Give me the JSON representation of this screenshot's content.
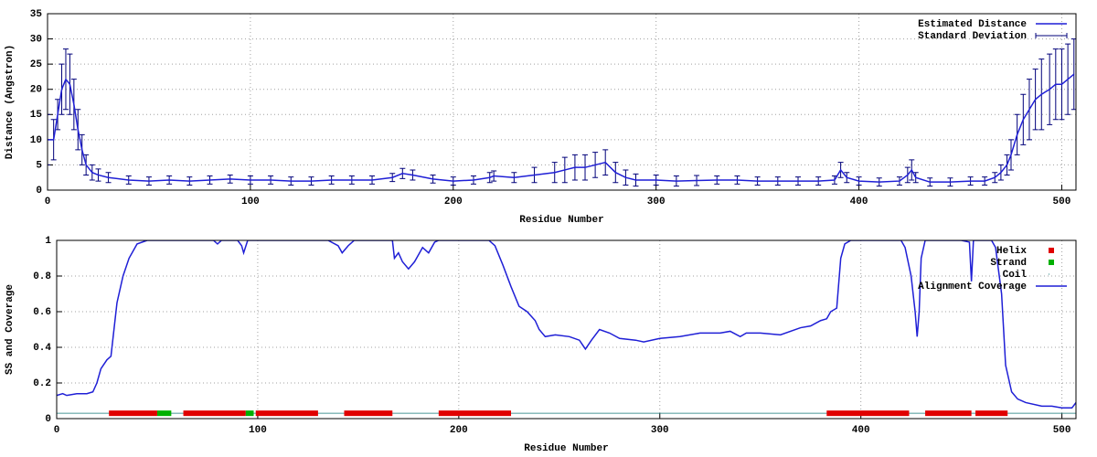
{
  "chart_data": [
    {
      "type": "errorbar",
      "xlabel": "Residue Number",
      "ylabel": "Distance (Angstron)",
      "xlim": [
        0,
        507
      ],
      "ylim": [
        0,
        35
      ],
      "xticks": [
        0,
        100,
        200,
        300,
        400,
        500
      ],
      "yticks": [
        0,
        5,
        10,
        15,
        20,
        25,
        30,
        35
      ],
      "grid": true,
      "legend": "top-right",
      "x": [
        0,
        3,
        5,
        7,
        9,
        11,
        13,
        15,
        17,
        19,
        22,
        25,
        30,
        40,
        50,
        60,
        70,
        80,
        90,
        100,
        110,
        120,
        130,
        140,
        150,
        160,
        170,
        175,
        180,
        190,
        200,
        210,
        218,
        220,
        230,
        240,
        250,
        255,
        260,
        265,
        270,
        275,
        280,
        285,
        290,
        300,
        310,
        320,
        330,
        340,
        350,
        360,
        370,
        380,
        388,
        391,
        394,
        400,
        410,
        420,
        424,
        426,
        428,
        435,
        445,
        455,
        462,
        467,
        470,
        473,
        475,
        478,
        481,
        484,
        487,
        490,
        494,
        497,
        500,
        503,
        506
      ],
      "series": [
        {
          "name": "Estimated Distance",
          "color": "#1f1fd6",
          "values": [
            10,
            10,
            15,
            20,
            22,
            21,
            17,
            12,
            8,
            5,
            3.5,
            3,
            2.5,
            2,
            1.8,
            2,
            1.8,
            2,
            2.2,
            2,
            2,
            1.8,
            1.8,
            2,
            2,
            2,
            2.5,
            3.3,
            3,
            2.2,
            1.8,
            2,
            2.5,
            2.8,
            2.5,
            3,
            3.5,
            4,
            4.5,
            4.5,
            5,
            5.5,
            3.5,
            2.5,
            2,
            2,
            1.8,
            1.9,
            2,
            2,
            1.8,
            1.8,
            1.8,
            1.8,
            2,
            4,
            2.5,
            1.8,
            1.6,
            1.8,
            3,
            4,
            2.5,
            1.6,
            1.6,
            1.8,
            1.8,
            2.5,
            3.5,
            5,
            7,
            11,
            14,
            16,
            18,
            19,
            20,
            21,
            21,
            22,
            23
          ]
        },
        {
          "name": "Standard Deviation",
          "color": "#00007a",
          "values": [
            5,
            4,
            3,
            5,
            6,
            6,
            5,
            4,
            3,
            2,
            1.5,
            1.2,
            1,
            0.8,
            0.8,
            0.8,
            0.8,
            0.8,
            0.8,
            0.8,
            0.8,
            0.8,
            0.8,
            0.8,
            0.8,
            0.8,
            0.8,
            1,
            1,
            0.8,
            0.8,
            0.8,
            1,
            1,
            1,
            1.5,
            2,
            2.5,
            2.5,
            2.5,
            2.5,
            2.5,
            2,
            1.5,
            1.2,
            1,
            1,
            1,
            0.8,
            0.8,
            0.8,
            0.8,
            0.8,
            0.8,
            0.8,
            1.5,
            1,
            0.8,
            0.8,
            0.8,
            1.5,
            2,
            1,
            0.8,
            0.8,
            0.8,
            0.8,
            1,
            1.5,
            2,
            3,
            4,
            5,
            6,
            6,
            7,
            7,
            7,
            7,
            7,
            7
          ]
        }
      ]
    },
    {
      "type": "line",
      "xlabel": "Residue Number",
      "ylabel": "SS and Coverage",
      "xlim": [
        0,
        507
      ],
      "ylim": [
        0,
        1
      ],
      "xticks": [
        0,
        100,
        200,
        300,
        400,
        500
      ],
      "yticks": [
        0,
        0.2,
        0.4,
        0.6,
        0.8,
        1
      ],
      "grid": true,
      "legend": "top-right",
      "x": [
        0,
        3,
        5,
        10,
        15,
        18,
        20,
        22,
        25,
        27,
        28,
        30,
        33,
        36,
        40,
        45,
        50,
        60,
        70,
        78,
        80,
        82,
        90,
        92,
        93,
        95,
        100,
        120,
        135,
        140,
        142,
        145,
        148,
        160,
        167,
        168,
        170,
        172,
        175,
        178,
        180,
        182,
        185,
        188,
        190,
        200,
        210,
        215,
        218,
        222,
        226,
        230,
        234,
        238,
        240,
        243,
        248,
        255,
        260,
        263,
        266,
        270,
        275,
        280,
        288,
        292,
        300,
        310,
        320,
        330,
        335,
        340,
        343,
        350,
        360,
        370,
        375,
        380,
        383,
        385,
        388,
        390,
        392,
        395,
        410,
        420,
        422,
        425,
        427,
        428,
        429,
        430,
        432,
        450,
        454,
        455,
        456,
        465,
        467,
        470,
        472,
        475,
        478,
        482,
        490,
        495,
        500,
        505,
        507
      ],
      "series": [
        {
          "name": "Helix",
          "color": "#e00000",
          "level": 0.03,
          "ranges": [
            [
              26,
              50
            ],
            [
              63,
              94
            ],
            [
              99,
              130
            ],
            [
              143,
              167
            ],
            [
              190,
              226
            ],
            [
              383,
              424
            ],
            [
              432,
              455
            ],
            [
              457,
              473
            ]
          ]
        },
        {
          "name": "Strand",
          "color": "#00b000",
          "level": 0.03,
          "ranges": [
            [
              50,
              57
            ],
            [
              94,
              98
            ]
          ]
        },
        {
          "name": "Coil",
          "color": "#208080",
          "level": 0.03,
          "ranges": [
            [
              0,
              507
            ]
          ]
        },
        {
          "name": "Alignment Coverage",
          "color": "#1f1fd6",
          "values": [
            0.13,
            0.14,
            0.13,
            0.14,
            0.14,
            0.15,
            0.2,
            0.28,
            0.33,
            0.35,
            0.45,
            0.65,
            0.8,
            0.9,
            0.98,
            1,
            1,
            1,
            1,
            1,
            0.98,
            1,
            1,
            0.97,
            0.93,
            1,
            1,
            1,
            1,
            0.97,
            0.93,
            0.97,
            1,
            1,
            1,
            0.9,
            0.93,
            0.88,
            0.84,
            0.88,
            0.92,
            0.96,
            0.93,
            0.99,
            1,
            1,
            1,
            1,
            0.97,
            0.86,
            0.74,
            0.63,
            0.6,
            0.55,
            0.5,
            0.46,
            0.47,
            0.46,
            0.44,
            0.39,
            0.44,
            0.5,
            0.48,
            0.45,
            0.44,
            0.43,
            0.45,
            0.46,
            0.48,
            0.48,
            0.49,
            0.46,
            0.48,
            0.48,
            0.47,
            0.51,
            0.52,
            0.55,
            0.56,
            0.6,
            0.62,
            0.9,
            0.98,
            1,
            1,
            1,
            0.96,
            0.8,
            0.6,
            0.46,
            0.6,
            0.9,
            1,
            1,
            0.99,
            0.77,
            1,
            1,
            0.96,
            0.7,
            0.3,
            0.15,
            0.11,
            0.09,
            0.07,
            0.07,
            0.06,
            0.06,
            0.09
          ]
        }
      ]
    }
  ]
}
